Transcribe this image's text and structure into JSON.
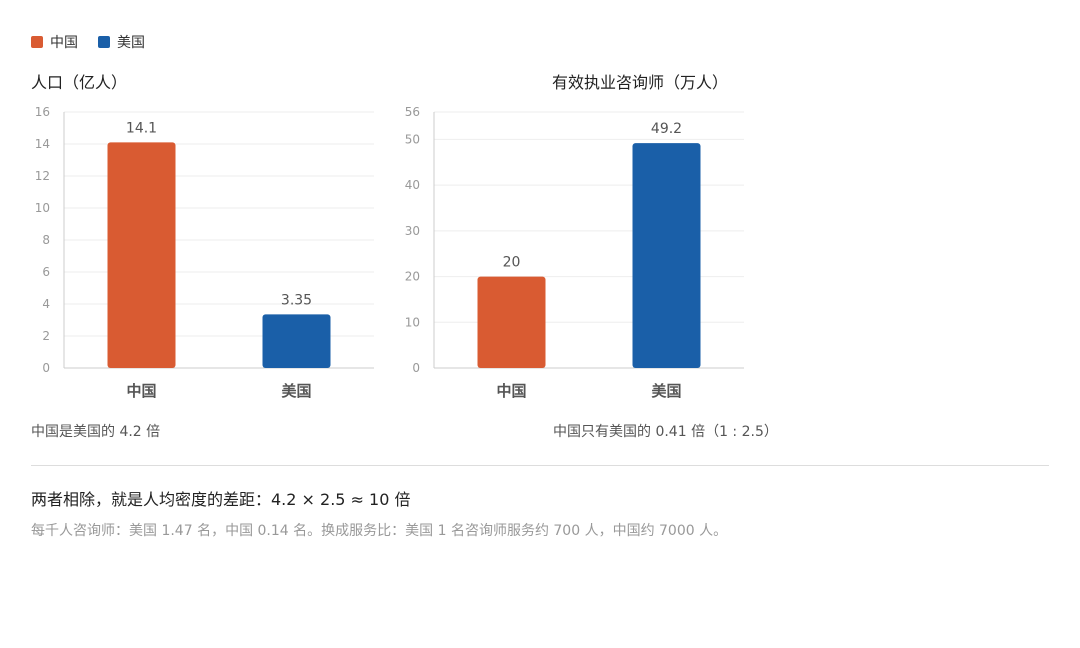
{
  "legend": [
    {
      "label": "中国",
      "color": "#d95b32"
    },
    {
      "label": "美国",
      "color": "#1a5fa8"
    }
  ],
  "chart_data": [
    {
      "type": "bar",
      "title": "人口（亿人）",
      "categories": [
        "中国",
        "美国"
      ],
      "values": [
        14.1,
        3.35
      ],
      "value_labels": [
        "14.1",
        "3.35"
      ],
      "ylim": [
        0,
        16
      ],
      "yticks": [
        0,
        2,
        4,
        6,
        8,
        10,
        12,
        14,
        16
      ],
      "colors": [
        "#d95b32",
        "#1a5fa8"
      ],
      "grid": true,
      "note": "中国是美国的 4.2 倍"
    },
    {
      "type": "bar",
      "title": "有效执业咨询师（万人）",
      "categories": [
        "中国",
        "美国"
      ],
      "values": [
        20,
        49.2
      ],
      "value_labels": [
        "20",
        "49.2"
      ],
      "ylim": [
        0,
        56
      ],
      "yticks": [
        0,
        10,
        20,
        30,
        40,
        50,
        56
      ],
      "colors": [
        "#d95b32",
        "#1a5fa8"
      ],
      "grid": true,
      "note": "中国只有美国的 0.41 倍（1 : 2.5）"
    }
  ],
  "summary": "两者相除，就是人均密度的差距：4.2 × 2.5 ≈ 10 倍",
  "detail": "每千人咨询师：美国 1.47 名，中国 0.14 名。换成服务比：美国 1 名咨询师服务约 700 人，中国约 7000 人。"
}
